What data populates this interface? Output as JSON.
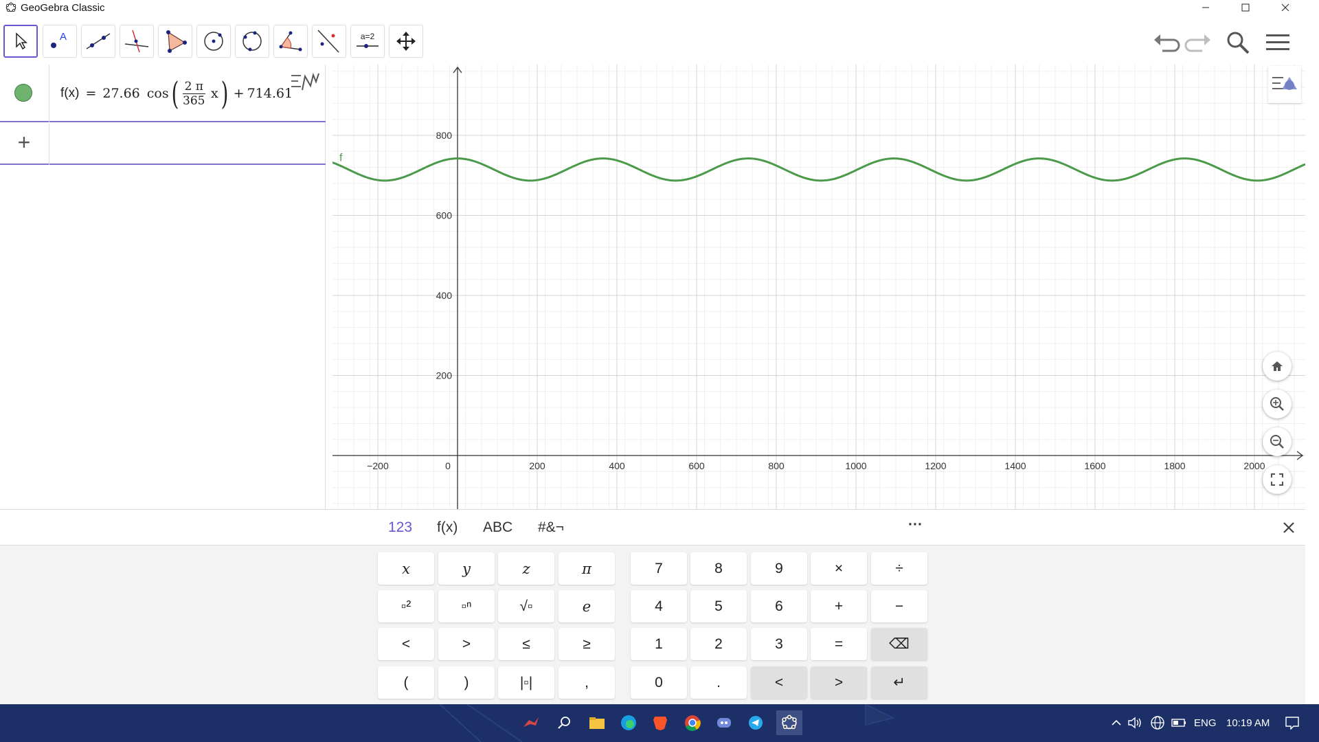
{
  "window": {
    "title": "GeoGebra Classic"
  },
  "toolbar": {
    "tools": [
      "move",
      "point",
      "line",
      "perpendicular-line",
      "polygon",
      "circle-center-point",
      "circle-three-points",
      "angle",
      "reflect",
      "slider",
      "move-graphics-view"
    ],
    "slider_label": "a=2"
  },
  "algebra": {
    "func_lhs": "f(x)",
    "eq": "=",
    "amp": "27.66",
    "cos": "cos",
    "frac_num": "2 π",
    "frac_den": "365",
    "var": "x",
    "plus": "+",
    "offset": "714.61",
    "input_plus": "+"
  },
  "graph": {
    "curve_label": "f",
    "curve_color": "#4a9a4a",
    "x_ticks": [
      "−200",
      "0",
      "200",
      "400",
      "600",
      "800",
      "1000",
      "1200",
      "1400",
      "1600",
      "1800",
      "2000"
    ],
    "y_ticks": [
      "800",
      "600",
      "400",
      "200"
    ]
  },
  "chart_data": {
    "type": "line",
    "function": "f(x) = 27.66 cos(2π/365 x) + 714.61",
    "amplitude": 27.66,
    "period": 365,
    "offset": 714.61,
    "xlim": [
      -310,
      2130
    ],
    "ylim": [
      -100,
      990
    ],
    "grid": true
  },
  "keyboard": {
    "tabs": [
      "123",
      "f(x)",
      "ABC",
      "#&¬"
    ],
    "more": "···",
    "rows": [
      [
        "x",
        "y",
        "z",
        "π",
        "7",
        "8",
        "9",
        "×",
        "÷"
      ],
      [
        "▫²",
        "▫ⁿ",
        "√▫",
        "e",
        "4",
        "5",
        "6",
        "+",
        "−"
      ],
      [
        "<",
        ">",
        "≤",
        "≥",
        "1",
        "2",
        "3",
        "=",
        "⌫"
      ],
      [
        "(",
        ")",
        "|▫|",
        ",",
        "0",
        ".",
        "<",
        ">",
        "↵"
      ]
    ]
  },
  "taskbar": {
    "lang": "ENG",
    "time": "10:19 AM"
  }
}
